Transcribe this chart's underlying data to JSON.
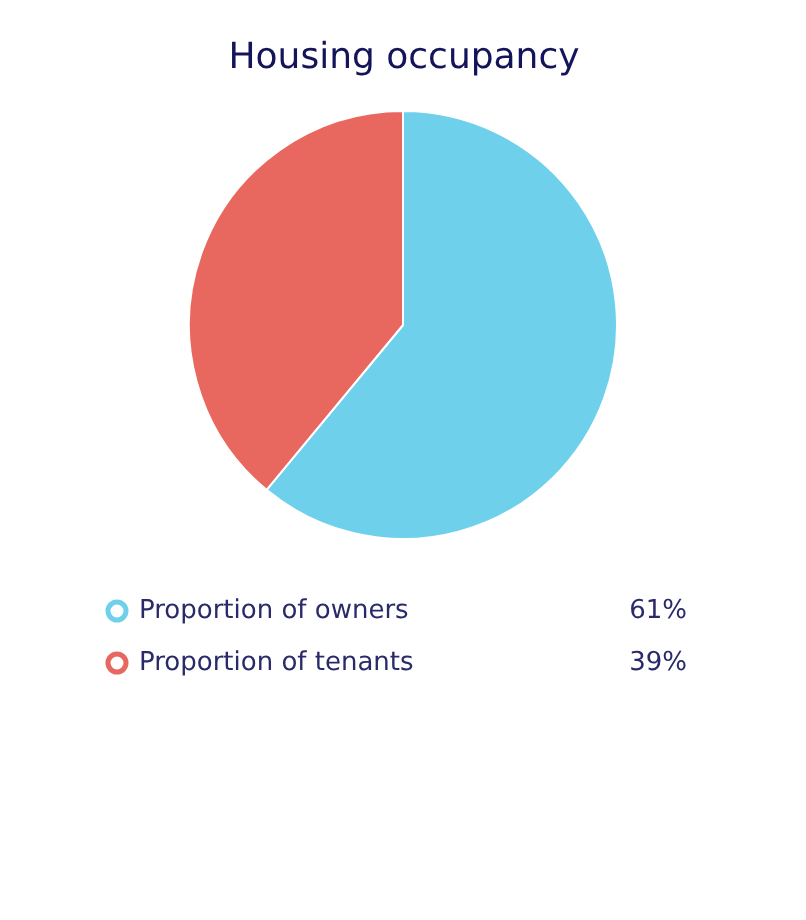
{
  "chart_data": {
    "type": "pie",
    "title": "Housing occupancy",
    "categories": [
      "Proportion of owners",
      "Proportion of tenants"
    ],
    "values": [
      61,
      39
    ],
    "colors": [
      "#6fd0ec",
      "#e8675f"
    ],
    "value_labels": [
      "61%",
      "39%"
    ],
    "legend": "bottom"
  }
}
